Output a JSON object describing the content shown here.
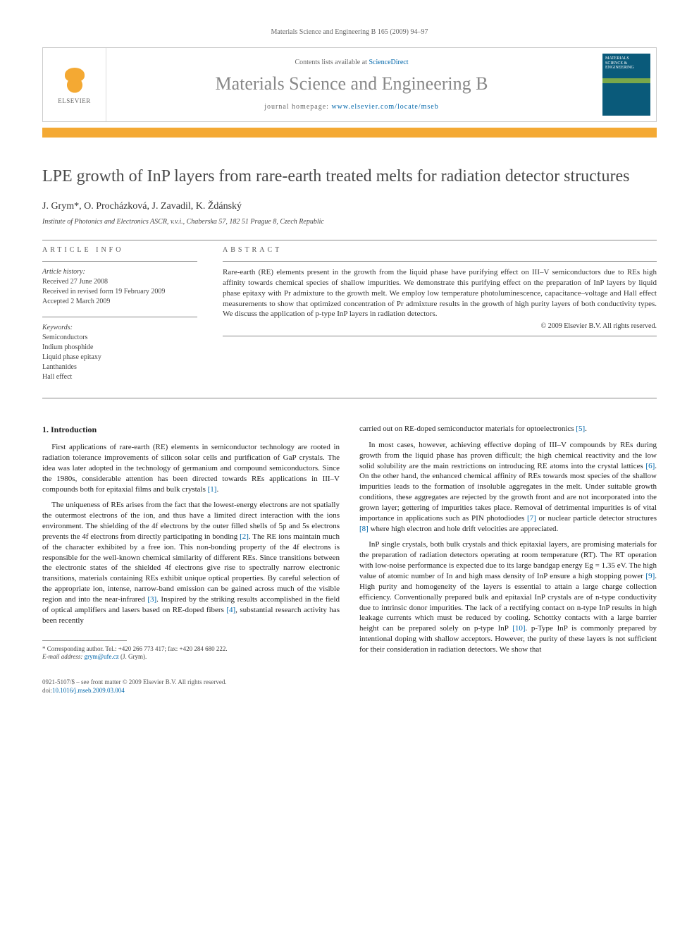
{
  "running_header": "Materials Science and Engineering B 165 (2009) 94–97",
  "banner": {
    "contents_prefix": "Contents lists available at ",
    "contents_link": "ScienceDirect",
    "journal_name": "Materials Science and Engineering B",
    "homepage_prefix": "journal homepage: ",
    "homepage_url": "www.elsevier.com/locate/mseb",
    "publisher": "ELSEVIER",
    "cover_text": "MATERIALS SCIENCE & ENGINEERING"
  },
  "title": "LPE growth of InP layers from rare-earth treated melts for radiation detector structures",
  "authors": "J. Grym*, O. Procházková, J. Zavadil, K. Ždánský",
  "affiliation": "Institute of Photonics and Electronics ASCR, v.v.i., Chaberska 57, 182 51 Prague 8, Czech Republic",
  "info_label": "ARTICLE INFO",
  "abstract_label": "ABSTRACT",
  "history": {
    "label": "Article history:",
    "received": "Received 27 June 2008",
    "revised": "Received in revised form 19 February 2009",
    "accepted": "Accepted 2 March 2009"
  },
  "keywords": {
    "label": "Keywords:",
    "items": [
      "Semiconductors",
      "Indium phosphide",
      "Liquid phase epitaxy",
      "Lanthanides",
      "Hall effect"
    ]
  },
  "abstract": "Rare-earth (RE) elements present in the growth from the liquid phase have purifying effect on III–V semiconductors due to REs high affinity towards chemical species of shallow impurities. We demonstrate this purifying effect on the preparation of InP layers by liquid phase epitaxy with Pr admixture to the growth melt. We employ low temperature photoluminescence, capacitance–voltage and Hall effect measurements to show that optimized concentration of Pr admixture results in the growth of high purity layers of both conductivity types. We discuss the application of p-type InP layers in radiation detectors.",
  "copyright": "© 2009 Elsevier B.V. All rights reserved.",
  "section1_heading": "1.  Introduction",
  "col1": {
    "p1": "First applications of rare-earth (RE) elements in semiconductor technology are rooted in radiation tolerance improvements of silicon solar cells and purification of GaP crystals. The idea was later adopted in the technology of germanium and compound semiconductors. Since the 1980s, considerable attention has been directed towards REs applications in III–V compounds both for epitaxial films and bulk crystals [1].",
    "p2": "The uniqueness of REs arises from the fact that the lowest-energy electrons are not spatially the outermost electrons of the ion, and thus have a limited direct interaction with the ions environment. The shielding of the 4f electrons by the outer filled shells of 5p and 5s electrons prevents the 4f electrons from directly participating in bonding [2]. The RE ions maintain much of the character exhibited by a free ion. This non-bonding property of the 4f electrons is responsible for the well-known chemical similarity of different REs. Since transitions between the electronic states of the shielded 4f electrons give rise to spectrally narrow electronic transitions, materials containing REs exhibit unique optical properties. By careful selection of the appropriate ion, intense, narrow-band emission can be gained across much of the visible region and into the near-infrared [3]. Inspired by the striking results accomplished in the field of optical amplifiers and lasers based on RE-doped fibers [4], substantial research activity has been recently"
  },
  "col2": {
    "p1": "carried out on RE-doped semiconductor materials for optoelectronics [5].",
    "p2": "In most cases, however, achieving effective doping of III–V compounds by REs during growth from the liquid phase has proven difficult; the high chemical reactivity and the low solid solubility are the main restrictions on introducing RE atoms into the crystal lattices [6]. On the other hand, the enhanced chemical affinity of REs towards most species of the shallow impurities leads to the formation of insoluble aggregates in the melt. Under suitable growth conditions, these aggregates are rejected by the growth front and are not incorporated into the grown layer; gettering of impurities takes place. Removal of detrimental impurities is of vital importance in applications such as PIN photodiodes [7] or nuclear particle detector structures [8] where high electron and hole drift velocities are appreciated.",
    "p3": "InP single crystals, both bulk crystals and thick epitaxial layers, are promising materials for the preparation of radiation detectors operating at room temperature (RT). The RT operation with low-noise performance is expected due to its large bandgap energy Eg = 1.35 eV. The high value of atomic number of In and high mass density of InP ensure a high stopping power [9]. High purity and homogeneity of the layers is essential to attain a large charge collection efficiency. Conventionally prepared bulk and epitaxial InP crystals are of n-type conductivity due to intrinsic donor impurities. The lack of a rectifying contact on n-type InP results in high leakage currents which must be reduced by cooling. Schottky contacts with a large barrier height can be prepared solely on p-type InP [10]. p-Type InP is commonly prepared by intentional doping with shallow acceptors. However, the purity of these layers is not sufficient for their consideration in radiation detectors. We show that"
  },
  "footnote": {
    "corr": "* Corresponding author. Tel.: +420 266 773 417; fax: +420 284 680 222.",
    "email_label": "E-mail address: ",
    "email": "grym@ufe.cz",
    "email_suffix": " (J. Grym)."
  },
  "footer": {
    "line1": "0921-5107/$ – see front matter © 2009 Elsevier B.V. All rights reserved.",
    "doi_prefix": "doi:",
    "doi": "10.1016/j.mseb.2009.03.004"
  },
  "colors": {
    "orange": "#f4a933",
    "link": "#0066aa",
    "title_gray": "#4a4a4a",
    "muted": "#888888"
  }
}
